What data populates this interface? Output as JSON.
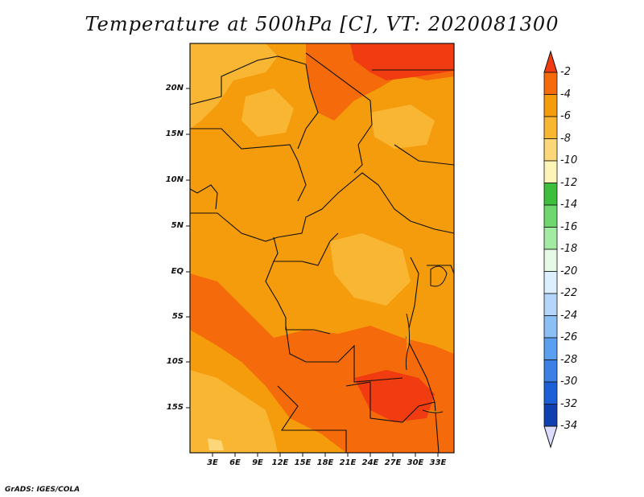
{
  "title": "Temperature at 500hPa [C], VT: 2020081300",
  "credit": "GrADS: IGES/COLA",
  "lat_labels": [
    "20N",
    "15N",
    "10N",
    "5N",
    "EQ",
    "5S",
    "10S",
    "15S"
  ],
  "lon_labels": [
    "3E",
    "6E",
    "9E",
    "12E",
    "15E",
    "18E",
    "21E",
    "24E",
    "27E",
    "30E",
    "33E"
  ],
  "colorbar": {
    "labels": [
      "-2",
      "-4",
      "-6",
      "-8",
      "-10",
      "-12",
      "-14",
      "-16",
      "-18",
      "-20",
      "-22",
      "-24",
      "-26",
      "-28",
      "-30",
      "-32",
      "-34"
    ],
    "colors": [
      "#f03c10",
      "#f56a0a",
      "#f59c0c",
      "#f8b633",
      "#fcd77a",
      "#fdf5b8",
      "#3dbf3d",
      "#6ed86e",
      "#a3eba3",
      "#e6fae6",
      "#dcefff",
      "#b4d6fa",
      "#8cbff5",
      "#5a9ff0",
      "#3c80e6",
      "#1d5fd6",
      "#1040b0",
      "#0a1a78",
      "#dcdcff"
    ]
  }
}
